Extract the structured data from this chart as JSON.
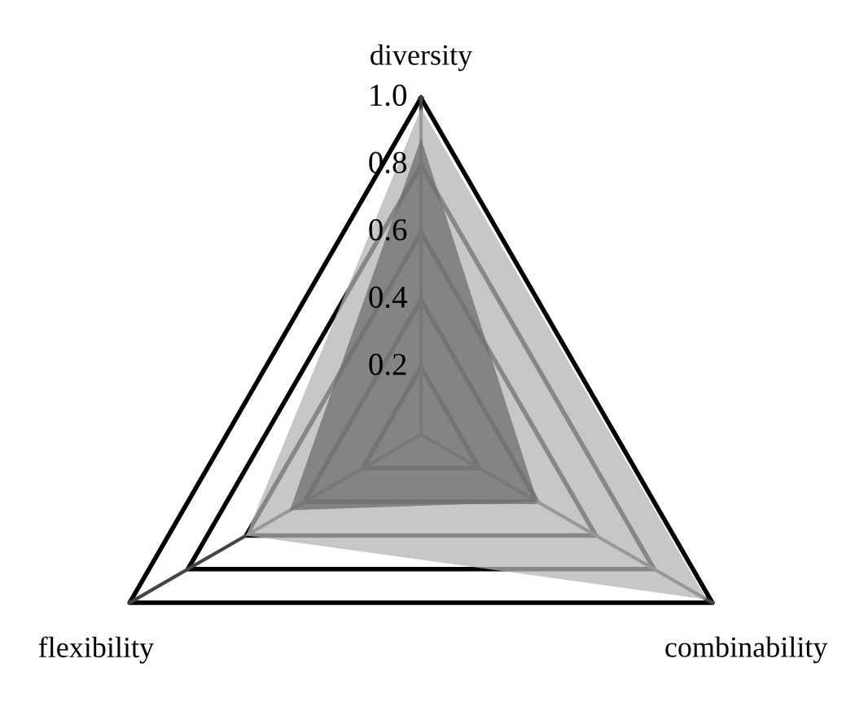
{
  "chart_data": {
    "type": "radar",
    "categories": [
      "diversity",
      "combinability",
      "flexibility"
    ],
    "series": [
      {
        "color": "#b4b4b4",
        "values": [
          0.97,
          0.98,
          0.6
        ]
      },
      {
        "color": "#6e6e6e",
        "values": [
          0.88,
          0.4,
          0.45
        ]
      }
    ],
    "ylim": [
      0,
      1.0
    ],
    "yticks": [
      0.2,
      0.4,
      0.6,
      0.8,
      {
        "value": 1.0,
        "label": "1.0"
      }
    ],
    "grid": true
  }
}
